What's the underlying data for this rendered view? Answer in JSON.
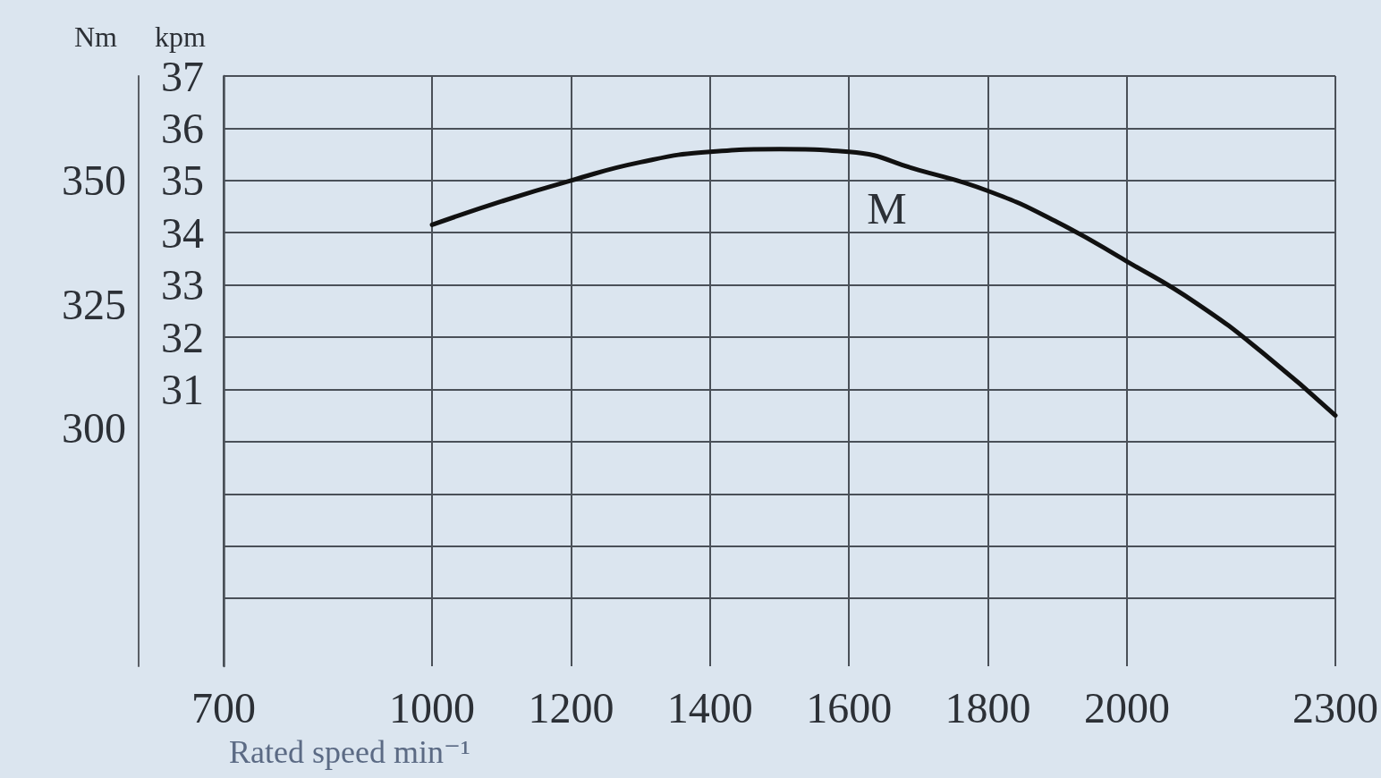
{
  "chart_data": {
    "type": "line",
    "xlabel": "Rated speed min⁻¹",
    "ylabel": "kpm",
    "y2label": "Nm",
    "x": [
      1000,
      1100,
      1200,
      1300,
      1400,
      1500,
      1600,
      1700,
      1800,
      1900,
      2000,
      2100,
      2200,
      2300
    ],
    "series": [
      {
        "name": "M",
        "color": "#111111",
        "values": [
          34.15,
          34.6,
          35.0,
          35.35,
          35.55,
          35.6,
          35.55,
          35.2,
          34.8,
          34.2,
          33.45,
          32.65,
          31.65,
          30.5
        ]
      }
    ],
    "xlim": [
      700,
      2300
    ],
    "xticks": [
      700,
      1000,
      1200,
      1400,
      1600,
      1800,
      2000,
      2300
    ],
    "ylim": [
      25.7,
      37
    ],
    "yticks": [
      {
        "value": 27,
        "label": null
      },
      {
        "value": 28,
        "label": null
      },
      {
        "value": 29,
        "label": null
      },
      {
        "value": 30,
        "label": null
      },
      31,
      32,
      33,
      34,
      35,
      36,
      37
    ],
    "y2lim": [
      252,
      371
    ],
    "y2ticks": [
      300,
      325,
      350
    ],
    "grid": true,
    "legend": false,
    "marker": "none",
    "line_style": "solid"
  }
}
